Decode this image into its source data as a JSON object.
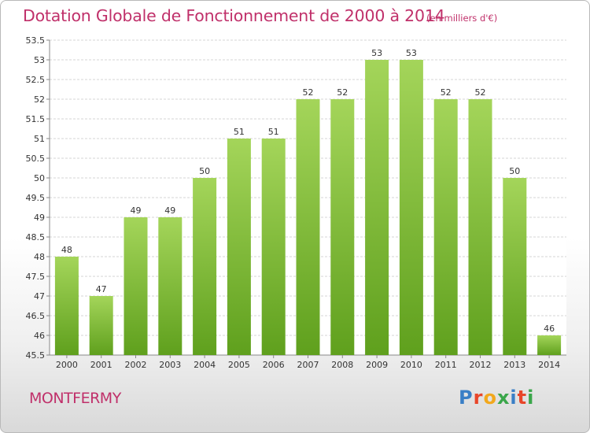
{
  "header": {
    "title": "Dotation Globale de Fonctionnement de 2000 à 2014",
    "unit": "(en milliers d'€)"
  },
  "footer": {
    "commune": "MONTFERMY",
    "logo": [
      "P",
      "r",
      "o",
      "x",
      "i",
      "t",
      "i"
    ]
  },
  "colors": {
    "title": "#c0306a",
    "bar_light": "#a4d55a",
    "bar_dark": "#5fa01d",
    "logo": [
      "#3a7fc6",
      "#e8462a",
      "#f2a81d",
      "#3aa64a",
      "#3a7fc6",
      "#e8462a",
      "#3aa64a"
    ]
  },
  "chart_data": {
    "type": "bar",
    "title": "Dotation Globale de Fonctionnement de 2000 à 2014",
    "subtitle": "(en milliers d'€)",
    "categories": [
      "2000",
      "2001",
      "2002",
      "2003",
      "2004",
      "2005",
      "2006",
      "2007",
      "2008",
      "2009",
      "2010",
      "2011",
      "2012",
      "2013",
      "2014"
    ],
    "values": [
      48,
      47,
      49,
      49,
      50,
      51,
      51,
      52,
      52,
      53,
      53,
      52,
      52,
      50,
      46
    ],
    "ylim": [
      45.5,
      53.5
    ],
    "yticks": [
      "45.5",
      "46",
      "46.5",
      "47",
      "47.5",
      "48",
      "48.5",
      "49",
      "49.5",
      "50",
      "50.5",
      "51",
      "51.5",
      "52",
      "52.5",
      "53",
      "53.5"
    ],
    "grid": true
  }
}
